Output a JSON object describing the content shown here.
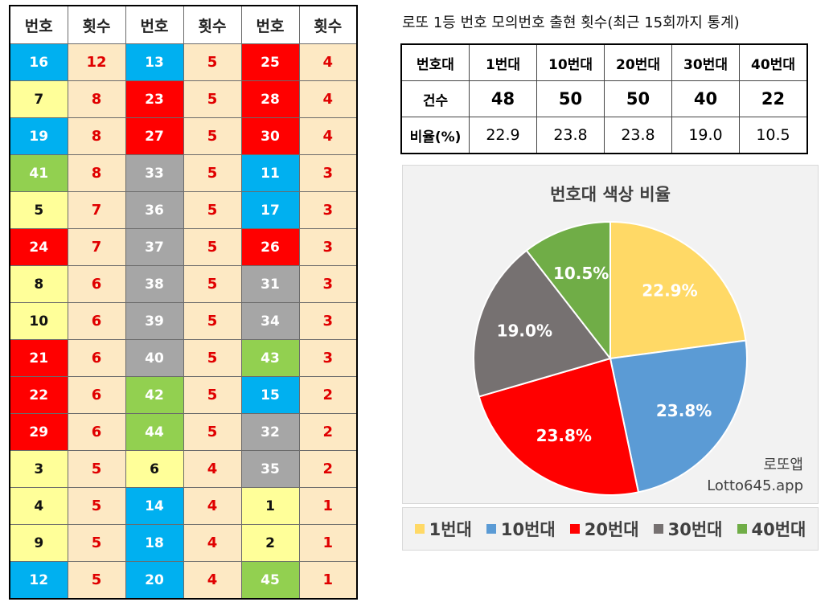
{
  "freq_table": {
    "headers": [
      "번호",
      "횟수",
      "번호",
      "횟수",
      "번호",
      "횟수"
    ],
    "rows": [
      [
        {
          "n": "16",
          "c": "blue"
        },
        {
          "k": "12"
        },
        {
          "n": "13",
          "c": "blue"
        },
        {
          "k": "5"
        },
        {
          "n": "25",
          "c": "red"
        },
        {
          "k": "4"
        }
      ],
      [
        {
          "n": "7",
          "c": "yellow"
        },
        {
          "k": "8"
        },
        {
          "n": "23",
          "c": "red"
        },
        {
          "k": "5"
        },
        {
          "n": "28",
          "c": "red"
        },
        {
          "k": "4"
        }
      ],
      [
        {
          "n": "19",
          "c": "blue"
        },
        {
          "k": "8"
        },
        {
          "n": "27",
          "c": "red"
        },
        {
          "k": "5"
        },
        {
          "n": "30",
          "c": "red"
        },
        {
          "k": "4"
        }
      ],
      [
        {
          "n": "41",
          "c": "green"
        },
        {
          "k": "8"
        },
        {
          "n": "33",
          "c": "gray"
        },
        {
          "k": "5"
        },
        {
          "n": "11",
          "c": "blue"
        },
        {
          "k": "3"
        }
      ],
      [
        {
          "n": "5",
          "c": "yellow"
        },
        {
          "k": "7"
        },
        {
          "n": "36",
          "c": "gray"
        },
        {
          "k": "5"
        },
        {
          "n": "17",
          "c": "blue"
        },
        {
          "k": "3"
        }
      ],
      [
        {
          "n": "24",
          "c": "red"
        },
        {
          "k": "7"
        },
        {
          "n": "37",
          "c": "gray"
        },
        {
          "k": "5"
        },
        {
          "n": "26",
          "c": "red"
        },
        {
          "k": "3"
        }
      ],
      [
        {
          "n": "8",
          "c": "yellow"
        },
        {
          "k": "6"
        },
        {
          "n": "38",
          "c": "gray"
        },
        {
          "k": "5"
        },
        {
          "n": "31",
          "c": "gray"
        },
        {
          "k": "3"
        }
      ],
      [
        {
          "n": "10",
          "c": "yellow"
        },
        {
          "k": "6"
        },
        {
          "n": "39",
          "c": "gray"
        },
        {
          "k": "5"
        },
        {
          "n": "34",
          "c": "gray"
        },
        {
          "k": "3"
        }
      ],
      [
        {
          "n": "21",
          "c": "red"
        },
        {
          "k": "6"
        },
        {
          "n": "40",
          "c": "gray"
        },
        {
          "k": "5"
        },
        {
          "n": "43",
          "c": "green"
        },
        {
          "k": "3"
        }
      ],
      [
        {
          "n": "22",
          "c": "red"
        },
        {
          "k": "6"
        },
        {
          "n": "42",
          "c": "green"
        },
        {
          "k": "5"
        },
        {
          "n": "15",
          "c": "blue"
        },
        {
          "k": "2"
        }
      ],
      [
        {
          "n": "29",
          "c": "red"
        },
        {
          "k": "6"
        },
        {
          "n": "44",
          "c": "green"
        },
        {
          "k": "5"
        },
        {
          "n": "32",
          "c": "gray"
        },
        {
          "k": "2"
        }
      ],
      [
        {
          "n": "3",
          "c": "yellow"
        },
        {
          "k": "5"
        },
        {
          "n": "6",
          "c": "yellow"
        },
        {
          "k": "4"
        },
        {
          "n": "35",
          "c": "gray"
        },
        {
          "k": "2"
        }
      ],
      [
        {
          "n": "4",
          "c": "yellow"
        },
        {
          "k": "5"
        },
        {
          "n": "14",
          "c": "blue"
        },
        {
          "k": "4"
        },
        {
          "n": "1",
          "c": "yellow"
        },
        {
          "k": "1"
        }
      ],
      [
        {
          "n": "9",
          "c": "yellow"
        },
        {
          "k": "5"
        },
        {
          "n": "18",
          "c": "blue"
        },
        {
          "k": "4"
        },
        {
          "n": "2",
          "c": "yellow"
        },
        {
          "k": "1"
        }
      ],
      [
        {
          "n": "12",
          "c": "blue"
        },
        {
          "k": "5"
        },
        {
          "n": "20",
          "c": "blue"
        },
        {
          "k": "4"
        },
        {
          "n": "45",
          "c": "green"
        },
        {
          "k": "1"
        }
      ]
    ]
  },
  "stats": {
    "title": "로또 1등 번호 모의번호 출현 횟수(최근 15회까지 통계)",
    "corner": "번호대",
    "bands": [
      "1번대",
      "10번대",
      "20번대",
      "30번대",
      "40번대"
    ],
    "count_label": "건수",
    "counts": [
      "48",
      "50",
      "50",
      "40",
      "22"
    ],
    "ratio_label": "비율(%)",
    "ratios": [
      "22.9",
      "23.8",
      "23.8",
      "19.0",
      "10.5"
    ]
  },
  "chart_data": {
    "type": "pie",
    "title": "번호대 색상 비율",
    "categories": [
      "1번대",
      "10번대",
      "20번대",
      "30번대",
      "40번대"
    ],
    "values": [
      22.9,
      23.8,
      23.8,
      19.0,
      10.5
    ],
    "labels": [
      "22.9%",
      "23.8%",
      "23.8%",
      "19.0%",
      "10.5%"
    ],
    "colors": [
      "#ffd966",
      "#5b9bd5",
      "#ff0000",
      "#767171",
      "#70ad47"
    ],
    "legend_position": "bottom",
    "start_angle_deg": 0,
    "direction": "clockwise"
  },
  "watermark": {
    "line1": "로또앱",
    "line2": "Lotto645.app"
  },
  "colors": {
    "yellow": "#ffff99",
    "blue": "#00b0f0",
    "red": "#ff0000",
    "gray": "#a6a6a6",
    "green": "#92d050",
    "count_bg": "#fde9c4",
    "count_text": "#e00000"
  }
}
